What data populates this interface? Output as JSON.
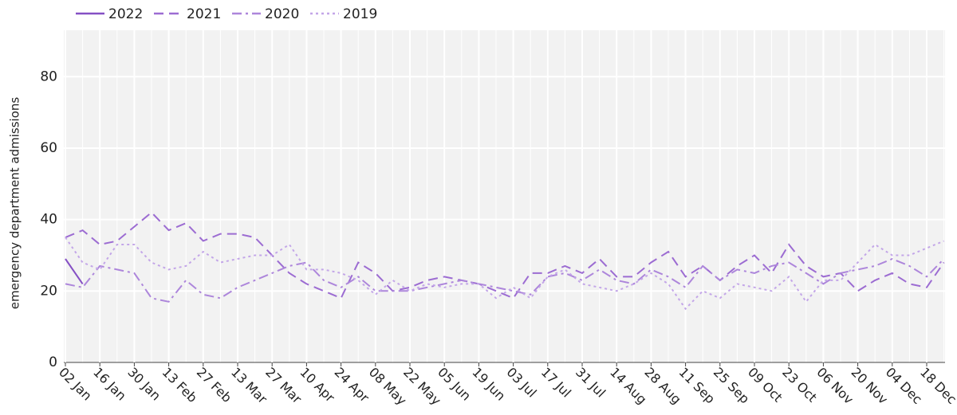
{
  "chart_data": {
    "type": "line",
    "y_label": "emergency department admissions",
    "categories": [
      "02 Jan",
      null,
      "16 Jan",
      null,
      "30 Jan",
      null,
      "13 Feb",
      null,
      "27 Feb",
      null,
      "13 Mar",
      null,
      "27 Mar",
      null,
      "10 Apr",
      null,
      "24 Apr",
      null,
      "08 May",
      null,
      "22 May",
      null,
      "05 Jun",
      null,
      "19 Jun",
      null,
      "03 Jul",
      null,
      "17 Jul",
      null,
      "31 Jul",
      null,
      "14 Aug",
      null,
      "28 Aug",
      null,
      "11 Sep",
      null,
      "25 Sep",
      null,
      "09 Oct",
      null,
      "23 Oct",
      null,
      "06 Nov",
      null,
      "20 Nov",
      null,
      "04 Dec",
      null,
      "18 Dec",
      null
    ],
    "series": [
      {
        "name": "2022",
        "color": "#8550c4",
        "dash": "solid",
        "values": [
          29,
          22,
          null,
          null,
          null,
          null,
          null,
          null,
          null,
          null,
          null,
          null,
          null,
          null,
          null,
          null,
          null,
          null,
          null,
          null,
          null,
          null,
          null,
          null,
          null,
          null,
          null,
          null,
          null,
          null,
          null,
          null,
          null,
          null,
          null,
          null,
          null,
          null,
          null,
          null,
          null,
          null,
          null,
          null,
          null,
          null,
          null,
          null,
          null,
          null,
          null,
          null
        ]
      },
      {
        "name": "2021",
        "color": "#9c6cd2",
        "dash": "dash",
        "values": [
          35,
          37,
          33,
          34,
          38,
          42,
          37,
          39,
          34,
          36,
          36,
          35,
          30,
          25,
          22,
          20,
          18,
          28,
          25,
          20,
          21,
          23,
          24,
          23,
          22,
          20,
          18,
          25,
          25,
          27,
          25,
          29,
          24,
          24,
          28,
          31,
          24,
          27,
          23,
          27,
          30,
          25,
          33,
          27,
          24,
          25,
          20,
          23,
          25,
          22,
          21,
          28
        ]
      },
      {
        "name": "2020",
        "color": "#ad86db",
        "dash": "dashdot",
        "values": [
          22,
          21,
          27,
          26,
          25,
          18,
          17,
          23,
          19,
          18,
          21,
          23,
          25,
          27,
          28,
          23,
          21,
          24,
          20,
          20,
          20,
          21,
          22,
          23,
          22,
          21,
          20,
          19,
          24,
          25,
          23,
          26,
          23,
          22,
          26,
          24,
          21,
          27,
          23,
          26,
          25,
          27,
          28,
          25,
          22,
          25,
          26,
          27,
          29,
          27,
          24,
          29
        ]
      },
      {
        "name": "2019",
        "color": "#c3a6e8",
        "dash": "dot",
        "values": [
          35,
          28,
          26,
          33,
          33,
          28,
          26,
          27,
          31,
          28,
          29,
          30,
          30,
          33,
          26,
          26,
          25,
          23,
          19,
          23,
          20,
          22,
          21,
          22,
          22,
          18,
          21,
          18,
          24,
          26,
          22,
          21,
          20,
          22,
          25,
          22,
          15,
          20,
          18,
          22,
          21,
          20,
          24,
          17,
          23,
          23,
          28,
          33,
          30,
          30,
          32,
          34
        ]
      }
    ],
    "ylim": [
      0,
      93
    ],
    "yticks": [
      0,
      20,
      40,
      60,
      80
    ],
    "grid": true,
    "legend": "top-left"
  }
}
